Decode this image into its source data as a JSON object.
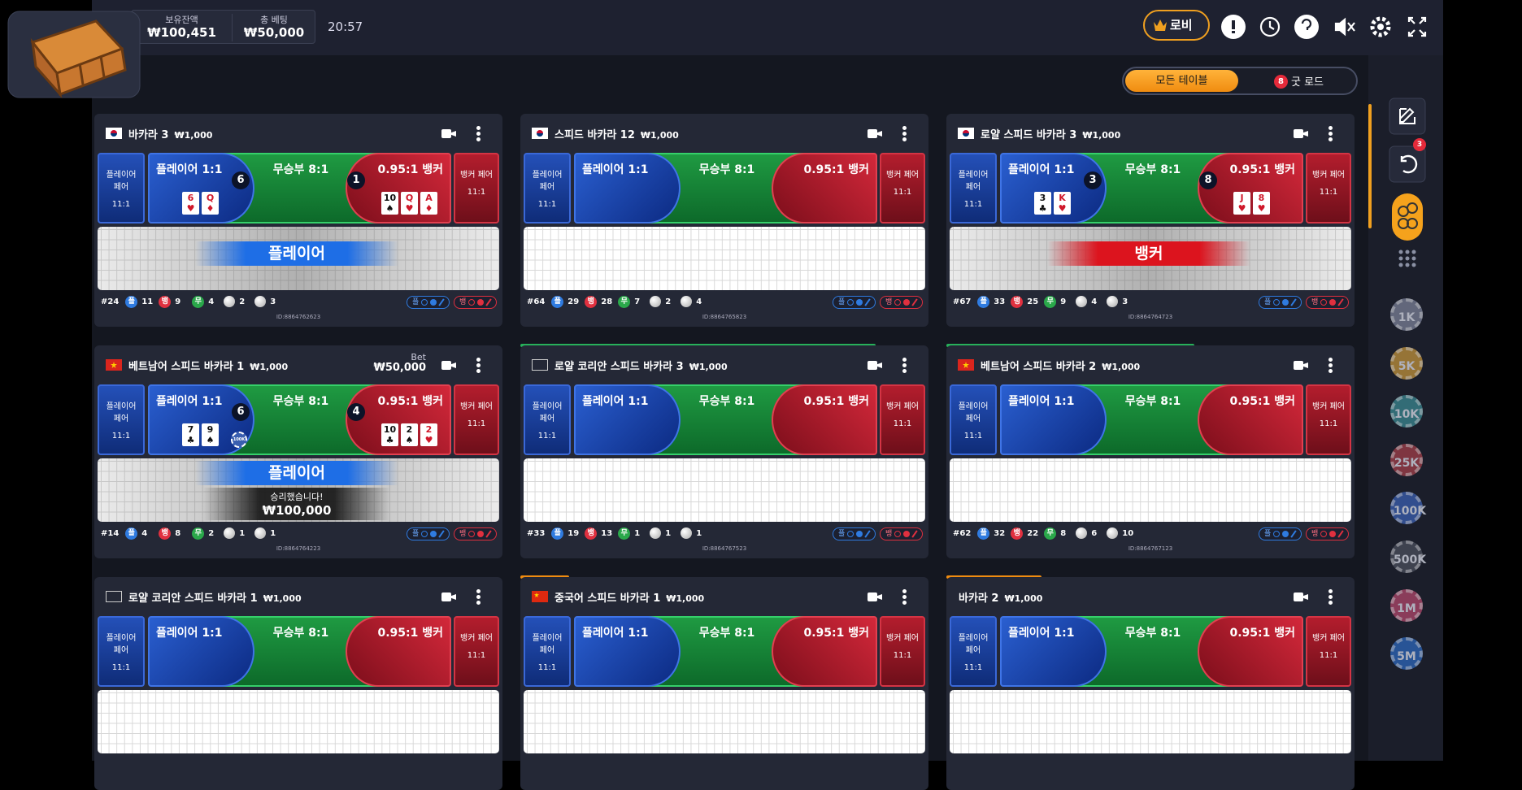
{
  "header": {
    "balance_label": "보유잔액",
    "balance": "₩100,451",
    "total_bet_label": "총 베팅",
    "total_bet": "₩50,000",
    "time": "20:57",
    "lobby": "로비"
  },
  "filter": {
    "all_tables": "모든 테이블",
    "good_road_count": "8",
    "good_road": "굿 로드"
  },
  "sidebar": {
    "undo_badge": "3",
    "chips": [
      {
        "label": "1K",
        "color": "#7a8096"
      },
      {
        "label": "5K",
        "color": "#c0913a"
      },
      {
        "label": "10K",
        "color": "#3a8790"
      },
      {
        "label": "25K",
        "color": "#a13f49"
      },
      {
        "label": "100K",
        "color": "#3a5fb0"
      },
      {
        "label": "500K",
        "color": "#4a4e5c"
      },
      {
        "label": "1M",
        "color": "#b0466a"
      },
      {
        "label": "5M",
        "color": "#2d66ba"
      }
    ]
  },
  "bet_labels": {
    "player_pair": "플레이어 페어",
    "player_pair_odds": "11:1",
    "player": "플레이어 1:1",
    "tie": "무승부 8:1",
    "banker": "0.95:1 뱅커",
    "banker_pair": "뱅커 페어",
    "banker_pair_odds": "11:1"
  },
  "stat_labels": {
    "player": "플",
    "banker": "뱅",
    "tie": "무"
  },
  "tables": [
    {
      "name": "바카라 3",
      "limit": "₩1,000",
      "flag": "kr",
      "player_score": 6,
      "player_cards": [
        {
          "rank": "6",
          "suit": "♥"
        },
        {
          "rank": "Q",
          "suit": "♦"
        }
      ],
      "banker_score": 1,
      "banker_cards": [
        {
          "rank": "10",
          "suit": "♠"
        },
        {
          "rank": "Q",
          "suit": "♥"
        },
        {
          "rank": "A",
          "suit": "♦"
        }
      ],
      "overlay": {
        "text": "플레이어",
        "side": "player"
      },
      "stats": {
        "round": "#24",
        "player": 11,
        "banker": 9,
        "tie": 4,
        "player_pair": 2,
        "banker_pair": 3
      },
      "id": "ID:8864762623"
    },
    {
      "name": "스피드 바카라 12",
      "limit": "₩1,000",
      "flag": "kr",
      "stats": {
        "round": "#64",
        "player": 29,
        "banker": 28,
        "tie": 7,
        "player_pair": 2,
        "banker_pair": 4
      },
      "id": "ID:8864765823"
    },
    {
      "name": "로얄 스피드 바카라 3",
      "limit": "₩1,000",
      "flag": "kr",
      "player_score": 3,
      "player_cards": [
        {
          "rank": "3",
          "suit": "♣"
        },
        {
          "rank": "K",
          "suit": "♥"
        }
      ],
      "banker_score": 8,
      "banker_cards": [
        {
          "rank": "J",
          "suit": "♥"
        },
        {
          "rank": "8",
          "suit": "♥"
        }
      ],
      "overlay": {
        "text": "뱅커",
        "side": "banker"
      },
      "stats": {
        "round": "#67",
        "player": 33,
        "banker": 25,
        "tie": 9,
        "player_pair": 4,
        "banker_pair": 3
      },
      "id": "ID:8864764723"
    },
    {
      "name": "베트남어 스피드 바카라 1",
      "limit": "₩1,000",
      "flag": "vn",
      "bet": {
        "label": "Bet",
        "amount": "₩50,000"
      },
      "player_score": 6,
      "player_cards": [
        {
          "rank": "7",
          "suit": "♣"
        },
        {
          "rank": "9",
          "suit": "♠"
        }
      ],
      "chip": "100K",
      "banker_score": 4,
      "banker_cards": [
        {
          "rank": "10",
          "suit": "♣"
        },
        {
          "rank": "2",
          "suit": "♠"
        },
        {
          "rank": "2",
          "suit": "♥"
        }
      ],
      "overlay": {
        "text": "플레이어",
        "side": "player"
      },
      "win": {
        "text": "승리했습니다!",
        "amount": "₩100,000"
      },
      "stats": {
        "round": "#14",
        "player": 4,
        "banker": 8,
        "tie": 2,
        "player_pair": 1,
        "banker_pair": 1
      },
      "id": "ID:8864764223"
    },
    {
      "name": "로얄 코리안 스피드 바카라 3",
      "limit": "₩1,000",
      "flag": "box",
      "stats": {
        "round": "#33",
        "player": 19,
        "banker": 13,
        "tie": 1,
        "player_pair": 1,
        "banker_pair": 1
      },
      "id": "ID:8864767523"
    },
    {
      "name": "베트남어 스피드 바카라 2",
      "limit": "₩1,000",
      "flag": "vn",
      "stats": {
        "round": "#62",
        "player": 32,
        "banker": 22,
        "tie": 8,
        "player_pair": 6,
        "banker_pair": 10
      },
      "id": "ID:8864767123"
    },
    {
      "name": "로얄 코리안 스피드 바카라 1",
      "limit": "₩1,000",
      "flag": "box"
    },
    {
      "name": "중국어 스피드 바카라 1",
      "limit": "₩1,000",
      "flag": "cn"
    },
    {
      "name": "바카라 2",
      "limit": "₩1,000"
    }
  ]
}
